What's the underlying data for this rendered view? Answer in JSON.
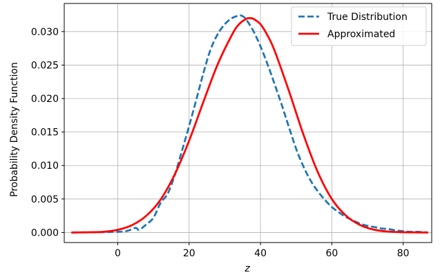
{
  "chart_data": {
    "type": "line",
    "title": "",
    "xlabel": "z",
    "ylabel": "Probability Density Function",
    "xlim": [
      -15,
      88
    ],
    "ylim": [
      -0.0015,
      0.0342
    ],
    "xticks": [
      0,
      20,
      40,
      60,
      80
    ],
    "yticks": [
      0.0,
      0.005,
      0.01,
      0.015,
      0.02,
      0.025,
      0.03
    ],
    "xtick_labels": [
      "0",
      "20",
      "40",
      "60",
      "80"
    ],
    "ytick_labels": [
      "0.000",
      "0.005",
      "0.010",
      "0.015",
      "0.020",
      "0.025",
      "0.030"
    ],
    "grid": true,
    "legend_position": "top-right",
    "series": [
      {
        "name": "True Distribution",
        "color": "#1f77b4",
        "style": "dashed",
        "x": [
          -13,
          0,
          3,
          5,
          6,
          8,
          10,
          12,
          14,
          16,
          18,
          20,
          22,
          24,
          26,
          28,
          30,
          32,
          34,
          35,
          36,
          38,
          40,
          42,
          44,
          46,
          48,
          50,
          52,
          54,
          56,
          58,
          60,
          62,
          64,
          66,
          68,
          70,
          72,
          74,
          76,
          78,
          80,
          82,
          84,
          87
        ],
        "y": [
          0.0,
          0.0001,
          0.0003,
          0.0007,
          0.0004,
          0.0012,
          0.0022,
          0.0044,
          0.0058,
          0.0086,
          0.0122,
          0.0159,
          0.0198,
          0.0238,
          0.0273,
          0.0296,
          0.0311,
          0.032,
          0.0324,
          0.0323,
          0.0318,
          0.0301,
          0.0278,
          0.0251,
          0.0221,
          0.019,
          0.0157,
          0.0125,
          0.0099,
          0.0078,
          0.0062,
          0.0049,
          0.0038,
          0.003,
          0.0023,
          0.0018,
          0.0013,
          0.001,
          0.0008,
          0.0006,
          0.0005,
          0.0003,
          0.0002,
          0.0001,
          0.0001,
          0.0
        ]
      },
      {
        "name": "Approximated",
        "color": "#ff0000",
        "style": "solid",
        "x": [
          -13,
          -8,
          -4,
          0,
          4,
          8,
          12,
          16,
          20,
          24,
          28,
          32,
          34,
          36,
          37,
          38,
          40,
          42,
          44,
          48,
          52,
          56,
          60,
          64,
          68,
          72,
          76,
          80,
          84,
          87
        ],
        "y": [
          0.0,
          3e-05,
          0.0001,
          0.0004,
          0.0011,
          0.0025,
          0.0049,
          0.0087,
          0.0137,
          0.0195,
          0.0251,
          0.0295,
          0.0311,
          0.0319,
          0.032,
          0.0319,
          0.0311,
          0.0294,
          0.0271,
          0.0211,
          0.0147,
          0.0091,
          0.005,
          0.0025,
          0.0011,
          0.0004,
          0.00013,
          4e-05,
          1e-05,
          0.0
        ]
      }
    ]
  }
}
